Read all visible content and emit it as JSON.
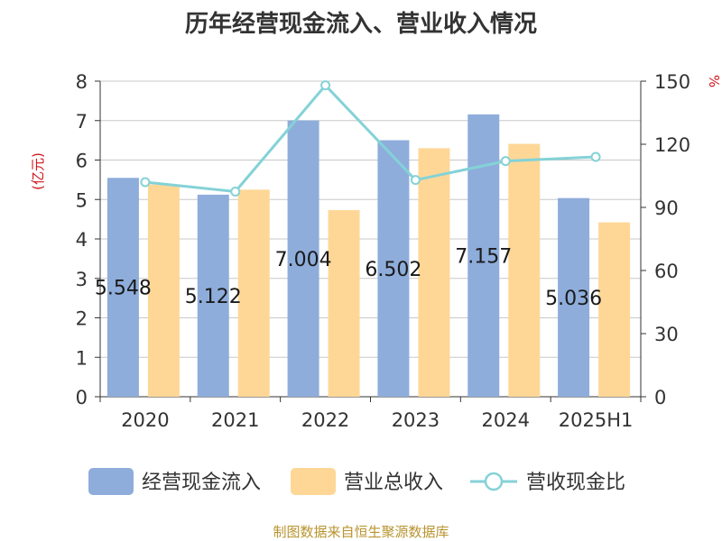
{
  "chart_data": {
    "type": "bar",
    "title": "历年经营现金流入、营业收入情况",
    "categories": [
      "2020",
      "2021",
      "2022",
      "2023",
      "2024",
      "2025H1"
    ],
    "ylabel_left": "(亿元)",
    "ylabel_right": "%",
    "ylim_left": [
      0,
      8
    ],
    "ylim_right": [
      0,
      150
    ],
    "yticks_left": [
      "0",
      "1",
      "2",
      "3",
      "4",
      "5",
      "6",
      "7",
      "8"
    ],
    "yticks_right": [
      "0",
      "30",
      "60",
      "90",
      "120",
      "150"
    ],
    "grid": true,
    "legend_position": "bottom",
    "series": [
      {
        "name": "经营现金流入",
        "kind": "bar",
        "axis": "left",
        "color": "#8eaddb",
        "values": [
          5.548,
          5.122,
          7.004,
          6.502,
          7.157,
          5.036
        ],
        "labels": [
          "5.548",
          "5.122",
          "7.004",
          "6.502",
          "7.157",
          "5.036"
        ]
      },
      {
        "name": "营业总收入",
        "kind": "bar",
        "axis": "left",
        "color": "#fed797",
        "values": [
          5.38,
          5.25,
          4.73,
          6.3,
          6.41,
          4.42
        ]
      },
      {
        "name": "营收现金比",
        "kind": "line",
        "axis": "right",
        "color": "#84d2d7",
        "values": [
          102,
          97.5,
          148,
          103,
          112,
          114
        ]
      }
    ]
  },
  "footer": "制图数据来自恒生聚源数据库"
}
